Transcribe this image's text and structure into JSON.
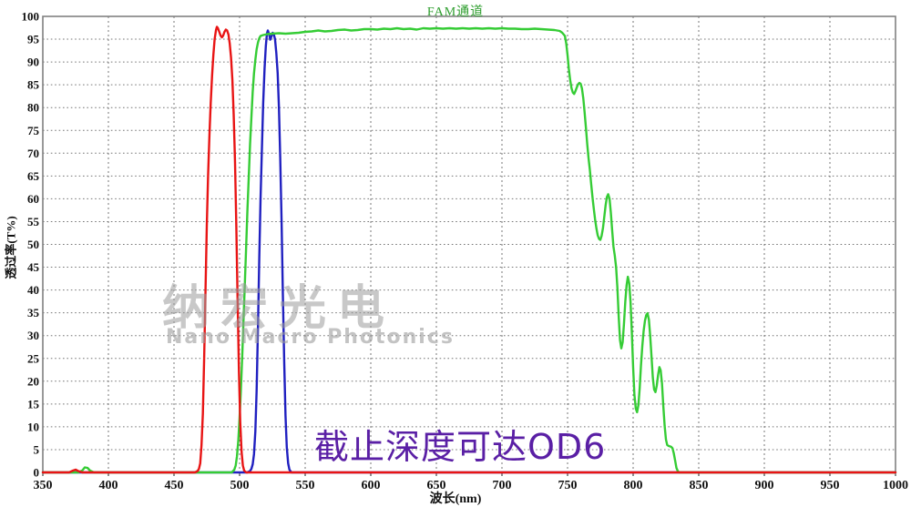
{
  "title": {
    "text": "FAM通道",
    "color": "#2e9e2e"
  },
  "axis": {
    "x_label": "波长(nm)",
    "y_label": "透过率(T%)"
  },
  "watermark": {
    "line1": "纳宏光电",
    "line2": "Nano Macro Photonics",
    "color": "#9c9c9c"
  },
  "annotation": {
    "text": "截止深度可达OD6",
    "color": "#5a1fa5"
  },
  "colors": {
    "grid": "#777777",
    "border": "#808080",
    "axis_line": "#222222",
    "red_curve": "#e81414",
    "blue_curve": "#2020c0",
    "green_curve": "#35cc35"
  },
  "chart_data": {
    "type": "line",
    "title": "FAM通道",
    "xlabel": "波长(nm)",
    "ylabel": "透过率(T%)",
    "xlim": [
      350,
      1000
    ],
    "ylim": [
      0,
      100
    ],
    "x_ticks": [
      350,
      400,
      450,
      500,
      550,
      600,
      650,
      700,
      750,
      800,
      850,
      900,
      950,
      1000
    ],
    "y_ticks": [
      0,
      5,
      10,
      15,
      20,
      25,
      30,
      35,
      40,
      45,
      50,
      55,
      60,
      65,
      70,
      75,
      80,
      85,
      90,
      95,
      100
    ],
    "grid": "dotted",
    "legend_position": "none",
    "series": [
      {
        "name": "blue-bandpass",
        "color": "#2020c0",
        "points": [
          [
            350,
            0
          ],
          [
            506,
            0
          ],
          [
            508,
            0.3
          ],
          [
            509,
            0.8
          ],
          [
            510,
            1.8
          ],
          [
            511,
            4
          ],
          [
            512,
            9
          ],
          [
            513,
            18
          ],
          [
            514,
            32
          ],
          [
            515,
            47
          ],
          [
            516,
            60
          ],
          [
            517,
            71
          ],
          [
            518,
            81
          ],
          [
            519,
            88.5
          ],
          [
            520,
            93.5
          ],
          [
            520.8,
            96.2
          ],
          [
            521.5,
            96.9
          ],
          [
            522.5,
            96.1
          ],
          [
            523.3,
            94.9
          ],
          [
            524.2,
            95.5
          ],
          [
            525.2,
            96.4
          ],
          [
            526,
            96.2
          ],
          [
            527,
            95
          ],
          [
            528,
            92
          ],
          [
            529,
            87.5
          ],
          [
            530,
            80
          ],
          [
            531,
            69
          ],
          [
            532,
            55
          ],
          [
            533,
            39
          ],
          [
            534,
            24
          ],
          [
            535,
            12.5
          ],
          [
            536,
            5.5
          ],
          [
            537,
            2
          ],
          [
            538,
            0.6
          ],
          [
            539.5,
            0
          ],
          [
            1000,
            0
          ]
        ]
      },
      {
        "name": "green-band",
        "color": "#35cc35",
        "points": [
          [
            350,
            0
          ],
          [
            377,
            0
          ],
          [
            380,
            0.4
          ],
          [
            382,
            1.1
          ],
          [
            384,
            1
          ],
          [
            386,
            0.4
          ],
          [
            389,
            0
          ],
          [
            494,
            0
          ],
          [
            496,
            0.6
          ],
          [
            497,
            1.5
          ],
          [
            498,
            3.5
          ],
          [
            499,
            7
          ],
          [
            500,
            12
          ],
          [
            501,
            18
          ],
          [
            502,
            25.5
          ],
          [
            503,
            33.5
          ],
          [
            504,
            41.5
          ],
          [
            505,
            49.5
          ],
          [
            506,
            57.5
          ],
          [
            507,
            65
          ],
          [
            508,
            72
          ],
          [
            509,
            78
          ],
          [
            510,
            83.5
          ],
          [
            511,
            87.5
          ],
          [
            512,
            90.5
          ],
          [
            513,
            92.8
          ],
          [
            514,
            94.3
          ],
          [
            515,
            95.2
          ],
          [
            516,
            95.7
          ],
          [
            518,
            95.9
          ],
          [
            521,
            96.1
          ],
          [
            525,
            96.2
          ],
          [
            530,
            96.3
          ],
          [
            535,
            96.2
          ],
          [
            540,
            96.3
          ],
          [
            545,
            96.4
          ],
          [
            550,
            96.6
          ],
          [
            555,
            96.7
          ],
          [
            560,
            96.9
          ],
          [
            565,
            96.7
          ],
          [
            570,
            96.8
          ],
          [
            575,
            97
          ],
          [
            580,
            97.1
          ],
          [
            585,
            96.9
          ],
          [
            590,
            97
          ],
          [
            595,
            97.2
          ],
          [
            600,
            97.2
          ],
          [
            605,
            97.1
          ],
          [
            610,
            97.3
          ],
          [
            615,
            97.2
          ],
          [
            620,
            97.4
          ],
          [
            625,
            97.2
          ],
          [
            630,
            97.3
          ],
          [
            635,
            97.1
          ],
          [
            640,
            97.4
          ],
          [
            645,
            97.3
          ],
          [
            650,
            97.4
          ],
          [
            655,
            97.3
          ],
          [
            660,
            97.4
          ],
          [
            665,
            97.3
          ],
          [
            670,
            97.4
          ],
          [
            675,
            97.3
          ],
          [
            680,
            97.4
          ],
          [
            685,
            97.3
          ],
          [
            690,
            97.4
          ],
          [
            695,
            97.3
          ],
          [
            700,
            97.4
          ],
          [
            705,
            97.3
          ],
          [
            710,
            97.3
          ],
          [
            715,
            97.2
          ],
          [
            720,
            97.2
          ],
          [
            725,
            97.3
          ],
          [
            730,
            97.2
          ],
          [
            735,
            97.1
          ],
          [
            740,
            97
          ],
          [
            744,
            96.8
          ],
          [
            746,
            96.4
          ],
          [
            748,
            95.7
          ],
          [
            749,
            94
          ],
          [
            750,
            91.5
          ],
          [
            751,
            88.5
          ],
          [
            752,
            86
          ],
          [
            753,
            84.3
          ],
          [
            754,
            83.3
          ],
          [
            755,
            83
          ],
          [
            756,
            83.6
          ],
          [
            757,
            84.4
          ],
          [
            758,
            85.1
          ],
          [
            759,
            85.4
          ],
          [
            760,
            85.2
          ],
          [
            761,
            84.2
          ],
          [
            762,
            82
          ],
          [
            763,
            79
          ],
          [
            764,
            75.5
          ],
          [
            765,
            72
          ],
          [
            766,
            69
          ],
          [
            767,
            66.3
          ],
          [
            768,
            63.3
          ],
          [
            769,
            60.3
          ],
          [
            770,
            57.8
          ],
          [
            771,
            55.5
          ],
          [
            772,
            53.5
          ],
          [
            773,
            52
          ],
          [
            774,
            51.2
          ],
          [
            775,
            51
          ],
          [
            776,
            51.9
          ],
          [
            777,
            53.6
          ],
          [
            778,
            56
          ],
          [
            779,
            58.6
          ],
          [
            780,
            60.4
          ],
          [
            781,
            61
          ],
          [
            782,
            60
          ],
          [
            783,
            57
          ],
          [
            784,
            53
          ],
          [
            785,
            49.5
          ],
          [
            786,
            47.6
          ],
          [
            787,
            45
          ],
          [
            788,
            40.5
          ],
          [
            789,
            34
          ],
          [
            790,
            29
          ],
          [
            791,
            27.2
          ],
          [
            792,
            28.6
          ],
          [
            793,
            32.5
          ],
          [
            794,
            37.5
          ],
          [
            795,
            41
          ],
          [
            796,
            42.9
          ],
          [
            797,
            41.5
          ],
          [
            798,
            37.5
          ],
          [
            799,
            30.5
          ],
          [
            800,
            23
          ],
          [
            801,
            17
          ],
          [
            802,
            14
          ],
          [
            803,
            13.2
          ],
          [
            804,
            14.8
          ],
          [
            805,
            18.5
          ],
          [
            806,
            23.5
          ],
          [
            807,
            27.8
          ],
          [
            808,
            31
          ],
          [
            809,
            33.3
          ],
          [
            810,
            34.5
          ],
          [
            811,
            34.9
          ],
          [
            812,
            33.5
          ],
          [
            813,
            30
          ],
          [
            814,
            25.3
          ],
          [
            815,
            20.8
          ],
          [
            816,
            18.2
          ],
          [
            817,
            17.6
          ],
          [
            818,
            19
          ],
          [
            819,
            21.4
          ],
          [
            820,
            23.1
          ],
          [
            821,
            22.4
          ],
          [
            822,
            19.4
          ],
          [
            823,
            14.6
          ],
          [
            824,
            10.2
          ],
          [
            825,
            7.2
          ],
          [
            826,
            6
          ],
          [
            827,
            5.8
          ],
          [
            828,
            5.7
          ],
          [
            829,
            5.6
          ],
          [
            830,
            5.3
          ],
          [
            831,
            4.2
          ],
          [
            832,
            2.6
          ],
          [
            833,
            1
          ],
          [
            834,
            0.3
          ],
          [
            835,
            0
          ],
          [
            1000,
            0
          ]
        ]
      },
      {
        "name": "red-bandpass",
        "color": "#e81414",
        "points": [
          [
            350,
            0
          ],
          [
            370,
            0
          ],
          [
            373,
            0.4
          ],
          [
            375,
            0.6
          ],
          [
            377,
            0.3
          ],
          [
            380,
            0
          ],
          [
            466,
            0
          ],
          [
            468,
            0.3
          ],
          [
            469,
            0.8
          ],
          [
            470,
            2
          ],
          [
            471,
            6
          ],
          [
            472,
            13
          ],
          [
            473,
            25
          ],
          [
            474,
            40
          ],
          [
            475,
            54
          ],
          [
            476,
            65
          ],
          [
            477,
            74
          ],
          [
            478,
            81
          ],
          [
            479,
            87
          ],
          [
            480,
            91.5
          ],
          [
            481,
            95
          ],
          [
            482,
            97
          ],
          [
            482.7,
            97.7
          ],
          [
            483.5,
            97.4
          ],
          [
            484.5,
            96.6
          ],
          [
            485.5,
            95.8
          ],
          [
            486.5,
            95.4
          ],
          [
            487.5,
            95.8
          ],
          [
            488.5,
            96.6
          ],
          [
            489.5,
            97.1
          ],
          [
            490.5,
            96.9
          ],
          [
            491.5,
            96
          ],
          [
            492.5,
            94
          ],
          [
            493.5,
            91
          ],
          [
            494.5,
            86
          ],
          [
            495.5,
            78.5
          ],
          [
            496.5,
            68
          ],
          [
            497.5,
            54
          ],
          [
            498.5,
            38
          ],
          [
            499.5,
            22
          ],
          [
            500.5,
            11
          ],
          [
            501.5,
            4.5
          ],
          [
            502.5,
            1.5
          ],
          [
            503.5,
            0.4
          ],
          [
            505,
            0
          ],
          [
            1000,
            0
          ]
        ]
      }
    ]
  }
}
